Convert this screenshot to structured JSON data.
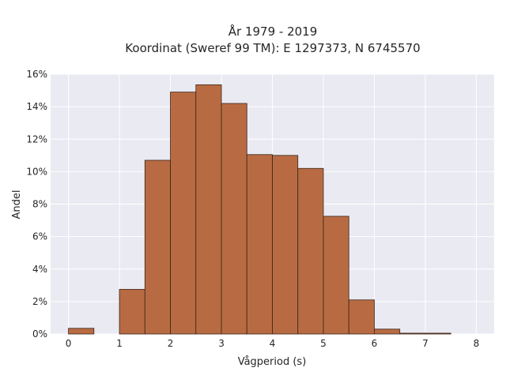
{
  "chart_data": {
    "type": "bar",
    "title_line1": "År 1979 - 2019",
    "title_line2": "Koordinat (Sweref 99 TM): E 1297373, N 6745570",
    "xlabel": "Vågperiod (s)",
    "ylabel": "Andel",
    "bin_width": 0.5,
    "bin_starts": [
      0,
      0.5,
      1,
      1.5,
      2,
      2.5,
      3,
      3.5,
      4,
      4.5,
      5,
      5.5,
      6,
      6.5,
      7,
      7.5
    ],
    "values": [
      0.35,
      0,
      2.75,
      10.7,
      14.9,
      15.35,
      14.2,
      11.05,
      11.0,
      10.2,
      7.25,
      2.1,
      0.3,
      0.05,
      0.05,
      0
    ],
    "xlim": [
      -0.35,
      8.35
    ],
    "ylim": [
      0,
      16
    ],
    "x_ticks": [
      0,
      1,
      2,
      3,
      4,
      5,
      6,
      7,
      8
    ],
    "x_tick_labels": [
      "0",
      "1",
      "2",
      "3",
      "4",
      "5",
      "6",
      "7",
      "8"
    ],
    "y_ticks": [
      0,
      2,
      4,
      6,
      8,
      10,
      12,
      14,
      16
    ],
    "y_tick_labels": [
      "0%",
      "2%",
      "4%",
      "6%",
      "8%",
      "10%",
      "12%",
      "14%",
      "16%"
    ],
    "grid": true,
    "colors": {
      "bar_fill": "#b86b43",
      "bar_edge": "#3a2417",
      "plot_bg": "#eaeaf2",
      "grid": "#ffffff"
    }
  }
}
